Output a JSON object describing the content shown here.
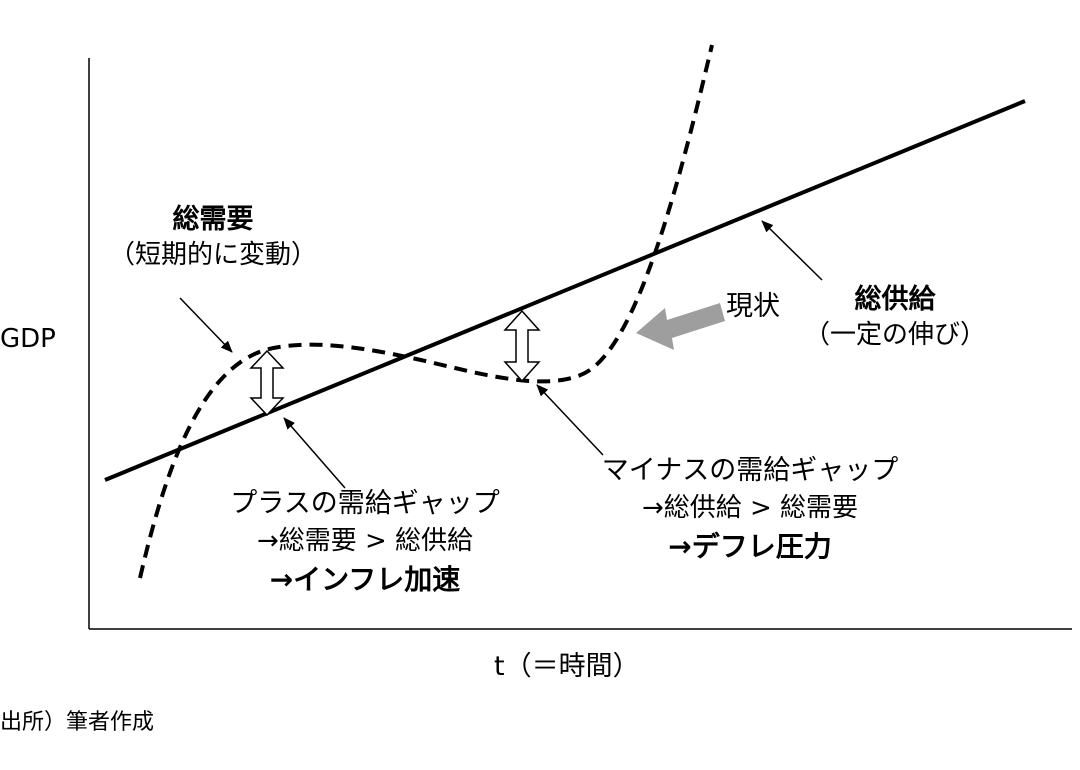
{
  "axis": {
    "y_label": "GDP",
    "x_label": "t（＝時間）"
  },
  "demand": {
    "title": "総需要",
    "subtitle": "（短期的に変動）"
  },
  "supply": {
    "title": "総供給",
    "subtitle": "（一定の伸び）"
  },
  "current_state_label": "現状",
  "positive_gap": {
    "line1": "プラスの需給ギャップ",
    "line2": "→総需要 > 総供給",
    "line3": "→インフレ加速"
  },
  "negative_gap": {
    "line1": "マイナスの需給ギャップ",
    "line2": "→総供給 > 総需要",
    "line3": "→デフレ圧力"
  },
  "source_note": "出所）筆者作成",
  "colors": {
    "line": "#000000",
    "current_arrow": "#9e9e9e"
  }
}
